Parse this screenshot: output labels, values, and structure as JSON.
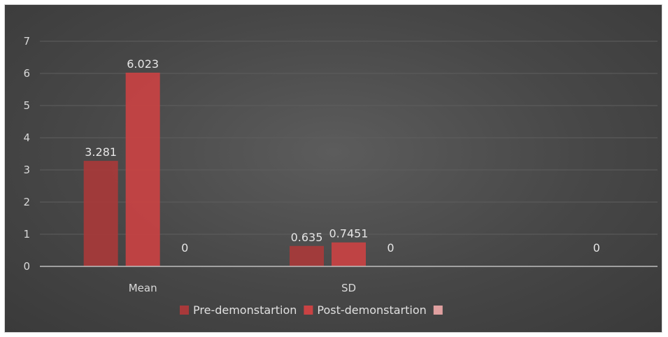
{
  "chart_data": {
    "type": "bar",
    "title": "",
    "xlabel": "",
    "ylabel": "",
    "categories": [
      "Mean",
      "SD",
      ""
    ],
    "series": [
      {
        "name": "Pre-demonstartion",
        "values": [
          3.281,
          0.635,
          null
        ],
        "labels": [
          "3.281",
          "0.635",
          ""
        ]
      },
      {
        "name": "Post-demonstartion",
        "values": [
          6.023,
          0.7451,
          null
        ],
        "labels": [
          "6.023",
          "0.7451",
          ""
        ]
      },
      {
        "name": "",
        "values": [
          0,
          0,
          0
        ],
        "labels": [
          "0",
          "0",
          "0"
        ]
      }
    ],
    "ylim": [
      0,
      7
    ],
    "yticks": [
      0,
      1,
      2,
      3,
      4,
      5,
      6,
      7
    ],
    "grid": true,
    "legend_position": "bottom",
    "colors": {
      "background": "#474747",
      "grid": "#5e5e5e",
      "axis": "#bfbfbf",
      "series": [
        "#a8393a",
        "#c94243",
        "#e0a0a0"
      ]
    }
  }
}
